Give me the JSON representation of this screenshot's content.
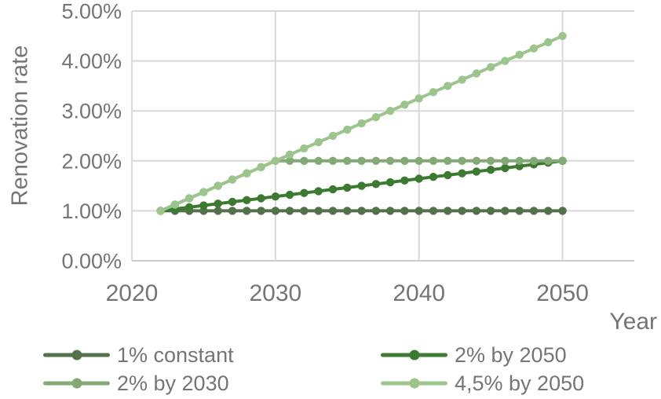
{
  "chart_data": {
    "type": "line",
    "title": "",
    "xlabel": "Year",
    "ylabel": "Renovation rate",
    "xlim": [
      2020,
      2055
    ],
    "ylim": [
      0,
      5
    ],
    "grid": true,
    "legend_position": "bottom",
    "x_ticks": [
      2020,
      2030,
      2040,
      2050
    ],
    "x_tick_labels": [
      "2020",
      "2030",
      "2040",
      "2050"
    ],
    "y_ticks": [
      0,
      1,
      2,
      3,
      4,
      5
    ],
    "y_tick_labels": [
      "0.00%",
      "1.00%",
      "2.00%",
      "3.00%",
      "4.00%",
      "5.00%"
    ],
    "x": [
      2022,
      2023,
      2024,
      2025,
      2026,
      2027,
      2028,
      2029,
      2030,
      2031,
      2032,
      2033,
      2034,
      2035,
      2036,
      2037,
      2038,
      2039,
      2040,
      2041,
      2042,
      2043,
      2044,
      2045,
      2046,
      2047,
      2048,
      2049,
      2050
    ],
    "series": [
      {
        "name": "1% constant",
        "color": "#53724B",
        "values": [
          1,
          1,
          1,
          1,
          1,
          1,
          1,
          1,
          1,
          1,
          1,
          1,
          1,
          1,
          1,
          1,
          1,
          1,
          1,
          1,
          1,
          1,
          1,
          1,
          1,
          1,
          1,
          1,
          1
        ]
      },
      {
        "name": "2% by 2050",
        "color": "#3B7A30",
        "values": [
          1,
          1.0357,
          1.0714,
          1.1071,
          1.1429,
          1.1786,
          1.2143,
          1.25,
          1.2857,
          1.3214,
          1.3571,
          1.3929,
          1.4286,
          1.4643,
          1.5,
          1.5357,
          1.5714,
          1.6071,
          1.6429,
          1.6786,
          1.7143,
          1.75,
          1.7857,
          1.8214,
          1.8571,
          1.8929,
          1.9286,
          1.9643,
          2
        ]
      },
      {
        "name": "2% by 2030",
        "color": "#83AA76",
        "values": [
          1,
          1.125,
          1.25,
          1.375,
          1.5,
          1.625,
          1.75,
          1.875,
          2,
          2,
          2,
          2,
          2,
          2,
          2,
          2,
          2,
          2,
          2,
          2,
          2,
          2,
          2,
          2,
          2,
          2,
          2,
          2,
          2
        ]
      },
      {
        "name": "4,5% by 2050",
        "color": "#9CC58D",
        "values": [
          1,
          1.125,
          1.25,
          1.375,
          1.5,
          1.625,
          1.75,
          1.875,
          2,
          2.125,
          2.25,
          2.375,
          2.5,
          2.625,
          2.75,
          2.875,
          3,
          3.125,
          3.25,
          3.375,
          3.5,
          3.625,
          3.75,
          3.875,
          4,
          4.125,
          4.25,
          4.375,
          4.5
        ]
      }
    ],
    "style": {
      "grid_color": "#D9D9D9",
      "axis_line_color": "#CBCBCB",
      "text_color": "#757575",
      "background": "#FFFFFF"
    }
  }
}
